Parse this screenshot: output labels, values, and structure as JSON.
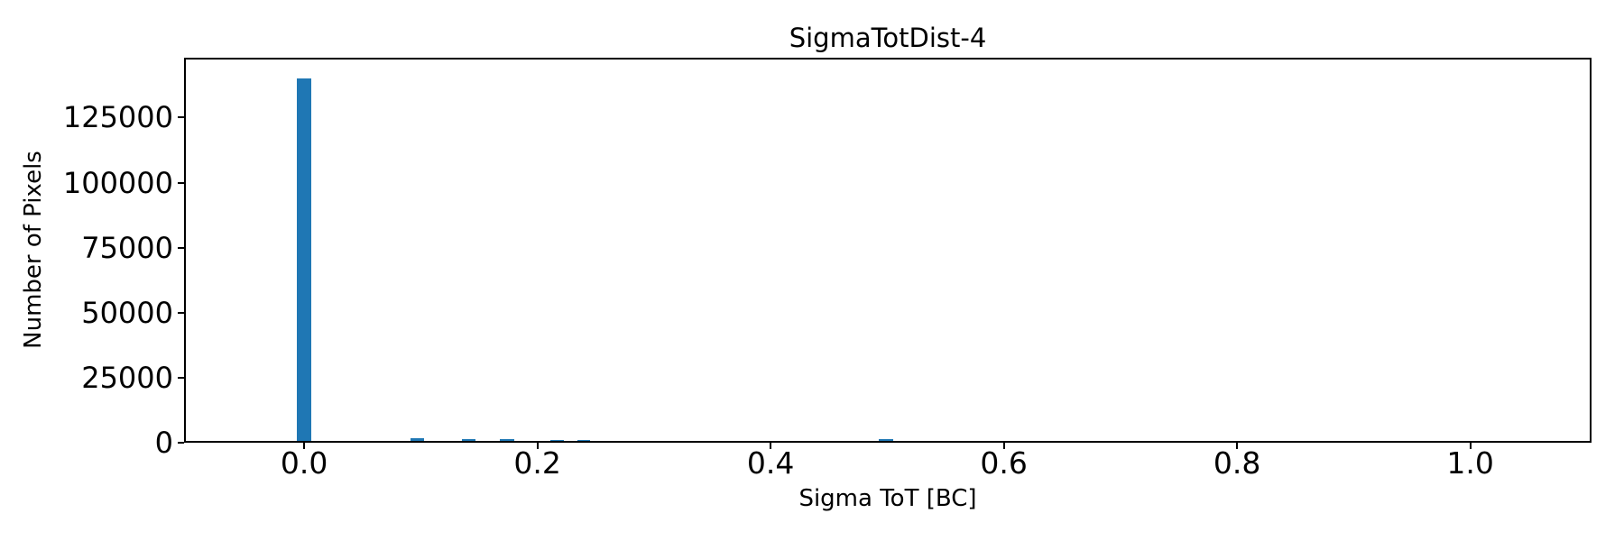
{
  "chart_data": {
    "type": "bar",
    "subtype": "histogram",
    "title": "SigmaTotDist-4",
    "xlabel": "Sigma ToT [BC]",
    "ylabel": "Number of Pixels",
    "bar_color": "#1f77b4",
    "axis_color": "#000000",
    "background_color": "#ffffff",
    "grid": "off",
    "legend": "none",
    "xlim": [
      -0.103,
      1.104
    ],
    "ylim": [
      0,
      148000
    ],
    "xticks": [
      {
        "value": 0.0,
        "label": "0.0"
      },
      {
        "value": 0.2,
        "label": "0.2"
      },
      {
        "value": 0.4,
        "label": "0.4"
      },
      {
        "value": 0.6,
        "label": "0.6"
      },
      {
        "value": 0.8,
        "label": "0.8"
      },
      {
        "value": 1.0,
        "label": "1.0"
      }
    ],
    "yticks": [
      {
        "value": 0,
        "label": "0"
      },
      {
        "value": 25000,
        "label": "25000"
      },
      {
        "value": 50000,
        "label": "50000"
      },
      {
        "value": 75000,
        "label": "75000"
      },
      {
        "value": 100000,
        "label": "100000"
      },
      {
        "value": 125000,
        "label": "125000"
      }
    ],
    "bars": [
      {
        "x0": -0.006,
        "x1": 0.006,
        "count": 140000
      },
      {
        "x0": 0.091,
        "x1": 0.103,
        "count": 1800
      },
      {
        "x0": 0.135,
        "x1": 0.147,
        "count": 1250
      },
      {
        "x0": 0.168,
        "x1": 0.18,
        "count": 1250
      },
      {
        "x0": 0.19,
        "x1": 0.201,
        "count": 800
      },
      {
        "x0": 0.211,
        "x1": 0.223,
        "count": 1000
      },
      {
        "x0": 0.234,
        "x1": 0.245,
        "count": 1000
      },
      {
        "x0": 0.255,
        "x1": 0.288,
        "count": 500
      },
      {
        "x0": 0.298,
        "x1": 0.451,
        "count": 350
      },
      {
        "x0": 0.451,
        "x1": 0.493,
        "count": 800
      },
      {
        "x0": 0.493,
        "x1": 0.505,
        "count": 1250
      }
    ]
  }
}
